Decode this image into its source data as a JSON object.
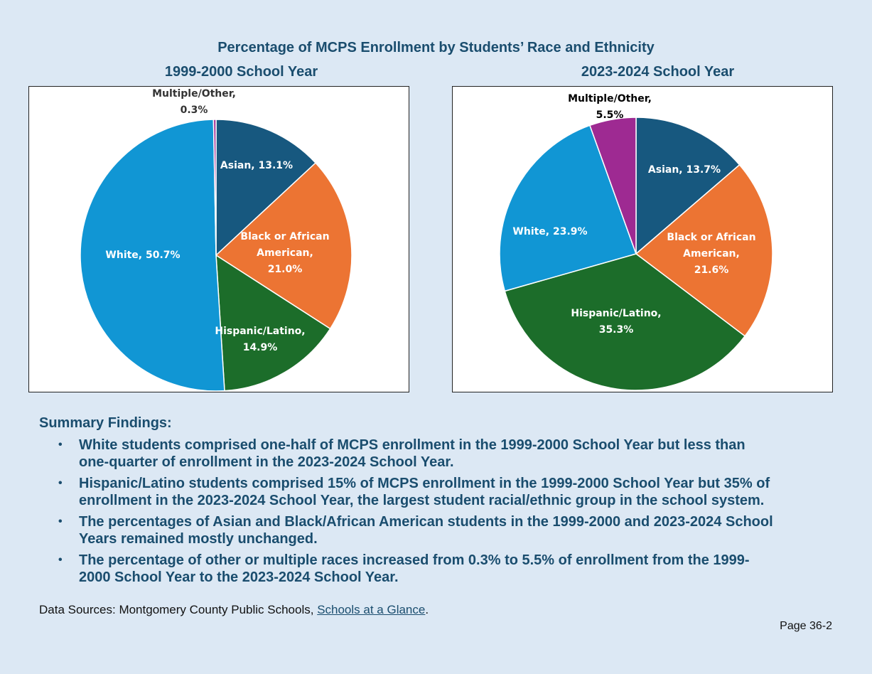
{
  "title": "Percentage of MCPS Enrollment by Students’ Race and Ethnicity",
  "chart_data": [
    {
      "type": "pie",
      "title": "1999-2000 School Year",
      "slices": [
        {
          "name": "Asian",
          "value": 13.1,
          "color": "#17587f",
          "label_lines": [
            "Asian, 13.1%"
          ]
        },
        {
          "name": "Black or African American",
          "value": 21.0,
          "color": "#ec7433",
          "label_lines": [
            "Black or African",
            "American,",
            "21.0%"
          ]
        },
        {
          "name": "Hispanic/Latino",
          "value": 14.9,
          "color": "#1c6d2a",
          "label_lines": [
            "Hispanic/Latino,",
            "14.9%"
          ]
        },
        {
          "name": "White",
          "value": 50.7,
          "color": "#1196d4",
          "label_lines": [
            "White, 50.7%"
          ]
        },
        {
          "name": "Multiple/Other",
          "value": 0.3,
          "color": "#9e2a92",
          "label_lines": [
            "Multiple/Other,",
            "0.3%"
          ]
        }
      ]
    },
    {
      "type": "pie",
      "title": "2023-2024 School Year",
      "slices": [
        {
          "name": "Asian",
          "value": 13.7,
          "color": "#17587f",
          "label_lines": [
            "Asian, 13.7%"
          ]
        },
        {
          "name": "Black or African American",
          "value": 21.6,
          "color": "#ec7433",
          "label_lines": [
            "Black or African",
            "American,",
            "21.6%"
          ]
        },
        {
          "name": "Hispanic/Latino",
          "value": 35.3,
          "color": "#1c6d2a",
          "label_lines": [
            "Hispanic/Latino,",
            "35.3%"
          ]
        },
        {
          "name": "White",
          "value": 23.9,
          "color": "#1196d4",
          "label_lines": [
            "White, 23.9%"
          ]
        },
        {
          "name": "Multiple/Other",
          "value": 5.5,
          "color": "#9e2a92",
          "label_lines": [
            "Multiple/Other,",
            "5.5%"
          ]
        }
      ]
    }
  ],
  "summary": {
    "heading": "Summary Findings:",
    "bullet": "•",
    "findings": [
      {
        "line1": "White students comprised one-half of MCPS enrollment in the 1999-2000 School Year but less than",
        "line2": "one-quarter of enrollment in the 2023-2024 School Year."
      },
      {
        "line1": "Hispanic/Latino students comprised 15% of MCPS enrollment in the 1999-2000 School Year but 35% of",
        "line2": "enrollment in the 2023-2024 School Year, the largest student racial/ethnic group in the school system."
      },
      {
        "line1": "The percentages of Asian and Black/African American students in the 1999-2000 and 2023-2024 School",
        "line2": "Years remained mostly unchanged."
      },
      {
        "line1": "The percentage of other or multiple races increased from 0.3% to 5.5% of enrollment from the 1999-",
        "line2": "2000 School Year to the 2023-2024 School Year."
      }
    ]
  },
  "sources": {
    "prefix": "Data Sources: Montgomery County Public Schools, ",
    "link_text": "Schools at a Glance",
    "suffix": "."
  },
  "page_number": "Page 36-2"
}
